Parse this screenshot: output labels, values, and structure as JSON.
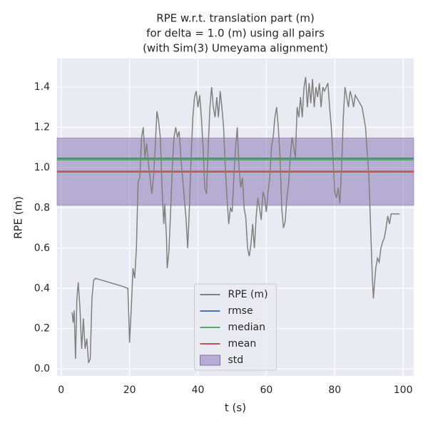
{
  "chart_data": {
    "type": "line",
    "title": [
      "RPE w.r.t. translation part (m)",
      "for delta = 1.0 (m) using all pairs",
      "(with Sim(3) Umeyama alignment)"
    ],
    "xlabel": "t (s)",
    "ylabel": "RPE (m)",
    "xlim": [
      -1.2,
      103.1
    ],
    "ylim": [
      -0.035,
      1.542
    ],
    "xticks": [
      0,
      20,
      40,
      60,
      80,
      100
    ],
    "yticks": [
      {
        "value": 0,
        "label": "0.0"
      },
      0.2,
      0.4,
      0.6,
      0.8,
      {
        "value": 1,
        "label": "1.0"
      },
      1.2,
      1.4
    ],
    "grid": true,
    "legend": "lower center",
    "x": [
      3.2,
      3.5,
      3.8,
      4.2,
      4.6,
      5,
      5.5,
      6,
      6.5,
      7,
      7.5,
      8,
      8.5,
      9,
      9.5,
      10,
      12,
      14,
      16,
      18,
      19.5,
      19.8,
      20,
      20.5,
      21,
      21.5,
      22,
      22.5,
      23,
      23.5,
      24,
      24.5,
      25,
      25.5,
      26,
      26.5,
      27,
      27.5,
      28,
      28.5,
      29,
      29.5,
      30,
      30.3,
      30.8,
      31,
      31.5,
      32,
      32.5,
      33,
      33.5,
      34,
      34.5,
      35,
      35.5,
      36,
      36.5,
      37,
      37.5,
      38,
      38.5,
      39,
      39.5,
      40,
      40.5,
      41,
      41.5,
      42,
      42.5,
      43,
      43.5,
      44,
      44.5,
      45,
      45.5,
      46,
      46.5,
      47,
      47.5,
      48,
      48.5,
      49,
      49.5,
      50,
      50.5,
      51,
      51.5,
      52,
      52.5,
      53,
      53.5,
      54,
      54.5,
      55,
      55.5,
      56,
      56.5,
      57,
      57.5,
      58,
      58.5,
      59,
      59.5,
      60,
      60.5,
      61,
      61.5,
      62,
      62.5,
      63,
      63.5,
      64,
      64.5,
      65,
      65.5,
      66,
      66.5,
      67,
      67.5,
      68,
      68.5,
      69,
      69.5,
      70,
      70.5,
      71,
      71.5,
      72,
      72.5,
      73,
      73.5,
      74,
      74.5,
      75,
      75.5,
      76,
      76.5,
      77,
      78,
      78.5,
      79,
      79.5,
      80,
      80.5,
      81,
      81.5,
      82,
      82.5,
      83,
      83.5,
      84,
      84.5,
      85,
      85.5,
      86,
      87,
      88,
      89,
      90,
      90.5,
      91,
      91.3,
      91.6,
      92,
      92.5,
      93,
      93.5,
      94,
      94.5,
      95,
      95.5,
      96,
      96.5,
      97,
      98,
      99
    ],
    "series": [
      {
        "name": "RPE (m)",
        "color": "#808080",
        "values": [
          0.28,
          0.23,
          0.29,
          0.05,
          0.35,
          0.43,
          0.3,
          0.1,
          0.25,
          0.1,
          0.15,
          0.03,
          0.05,
          0.35,
          0.44,
          0.45,
          0.44,
          0.43,
          0.42,
          0.41,
          0.4,
          0.25,
          0.13,
          0.3,
          0.5,
          0.45,
          0.6,
          0.93,
          0.95,
          1.15,
          1.2,
          1.05,
          1.12,
          1.02,
          0.95,
          0.87,
          0.95,
          1.1,
          1.28,
          1.23,
          1.15,
          0.9,
          0.72,
          0.82,
          0.65,
          0.5,
          0.58,
          0.78,
          1.0,
          1.15,
          1.2,
          1.15,
          1.18,
          1.05,
          0.95,
          0.85,
          0.75,
          0.6,
          0.8,
          1.05,
          1.25,
          1.35,
          1.38,
          1.3,
          1.36,
          1.25,
          1.1,
          0.9,
          0.87,
          1.1,
          1.3,
          1.4,
          1.3,
          1.25,
          1.35,
          1.25,
          1.38,
          1.3,
          1.2,
          1.0,
          0.85,
          0.72,
          0.8,
          0.78,
          0.95,
          1.1,
          1.2,
          1.0,
          0.9,
          0.95,
          0.8,
          0.75,
          0.6,
          0.56,
          0.62,
          0.72,
          0.6,
          0.75,
          0.85,
          0.8,
          0.74,
          0.88,
          0.85,
          0.78,
          0.88,
          0.95,
          1.1,
          1.15,
          1.25,
          1.3,
          1.2,
          1.05,
          0.8,
          0.7,
          0.73,
          0.85,
          0.92,
          1.05,
          1.15,
          1.1,
          1.05,
          1.3,
          1.25,
          1.35,
          1.25,
          1.4,
          1.45,
          1.3,
          1.42,
          1.32,
          1.44,
          1.3,
          1.4,
          1.35,
          1.42,
          1.3,
          1.4,
          1.38,
          1.42,
          1.3,
          1.2,
          1.05,
          0.88,
          0.85,
          0.9,
          0.82,
          1.0,
          1.25,
          1.4,
          1.35,
          1.3,
          1.38,
          1.35,
          1.3,
          1.36,
          1.33,
          1.3,
          1.2,
          0.95,
          0.7,
          0.45,
          0.35,
          0.42,
          0.5,
          0.55,
          0.53,
          0.6,
          0.63,
          0.65,
          0.7,
          0.76,
          0.72,
          0.77,
          0.77,
          0.77,
          0.77
        ]
      }
    ],
    "hlines": [
      {
        "name": "rmse",
        "color": "#4c72b0",
        "value": 1.045
      },
      {
        "name": "median",
        "color": "#55a868",
        "value": 1.04
      },
      {
        "name": "mean",
        "color": "#c44e52",
        "value": 0.98
      }
    ],
    "band": {
      "name": "std",
      "color": "#8172b2",
      "lower": 0.813,
      "upper": 1.147
    }
  }
}
